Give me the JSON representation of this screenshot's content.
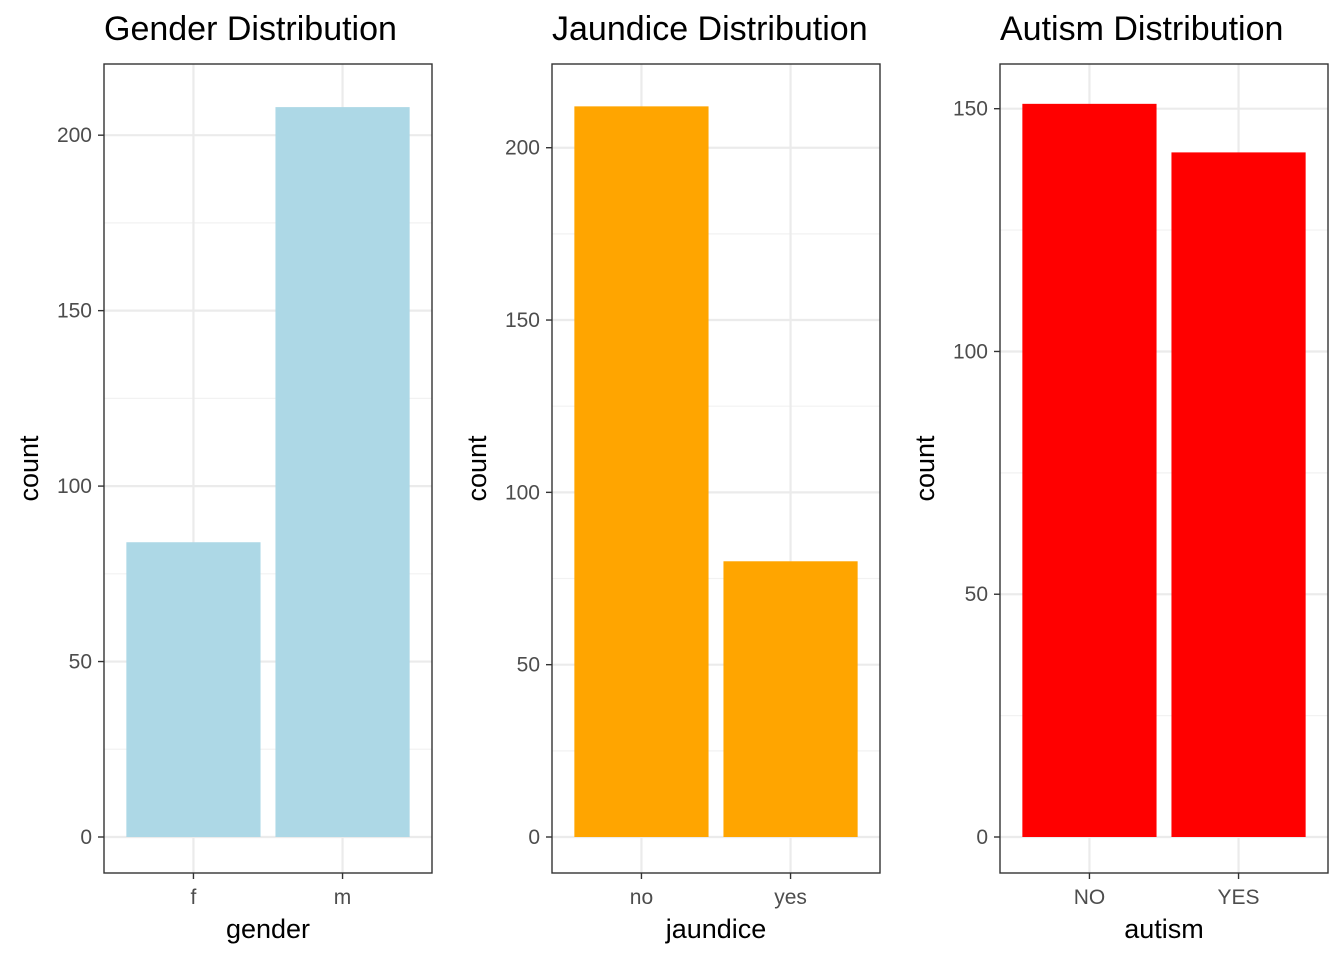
{
  "chart_data": [
    {
      "type": "bar",
      "title": "Gender Distribution",
      "xlabel": "gender",
      "ylabel": "count",
      "categories": [
        "f",
        "m"
      ],
      "values": [
        84,
        208
      ],
      "ylim": [
        0,
        220
      ],
      "yticks": [
        "0",
        "50",
        "100",
        "150",
        "200"
      ],
      "bar_color": "#ADD8E6",
      "grid": true
    },
    {
      "type": "bar",
      "title": "Jaundice Distribution",
      "xlabel": "jaundice",
      "ylabel": "count",
      "categories": [
        "no",
        "yes"
      ],
      "values": [
        212,
        80
      ],
      "ylim": [
        0,
        224
      ],
      "yticks": [
        "0",
        "50",
        "100",
        "150",
        "200"
      ],
      "bar_color": "#FFA500",
      "grid": true
    },
    {
      "type": "bar",
      "title": "Autism Distribution",
      "xlabel": "autism",
      "ylabel": "count",
      "categories": [
        "NO",
        "YES"
      ],
      "values": [
        151,
        141
      ],
      "ylim": [
        0,
        159
      ],
      "yticks": [
        "0",
        "50",
        "100",
        "150"
      ],
      "bar_color": "#FF0000",
      "grid": true
    }
  ]
}
